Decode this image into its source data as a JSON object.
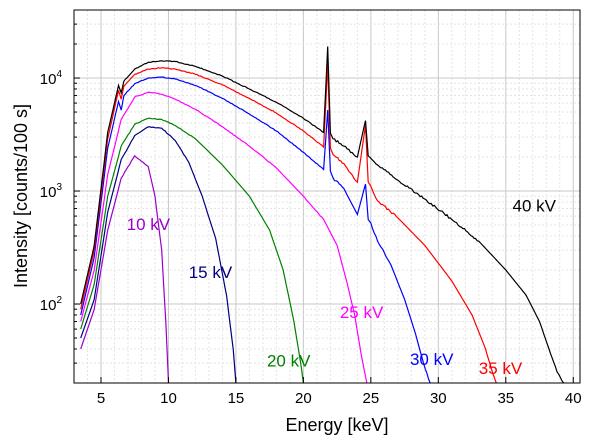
{
  "chart_data": {
    "type": "line",
    "xlabel": "Energy [keV]",
    "ylabel": "Intensity [counts/100 s]",
    "x_scale": "linear",
    "y_scale": "log",
    "xlim": [
      3,
      40.5
    ],
    "ylim": [
      20,
      40000
    ],
    "grid": true,
    "x_ticks": [
      5,
      10,
      15,
      20,
      25,
      30,
      35,
      40
    ],
    "x_tick_labels": [
      "5",
      "10",
      "15",
      "20",
      "25",
      "30",
      "35",
      "40"
    ],
    "y_ticks": [
      100,
      1000,
      10000
    ],
    "y_tick_labels": [
      {
        "base": "10",
        "exp": "2"
      },
      {
        "base": "10",
        "exp": "3"
      },
      {
        "base": "10",
        "exp": "4"
      }
    ],
    "series": [
      {
        "name": "10 kV",
        "color": "#9900cc",
        "x": [
          3.5,
          4.5,
          5.5,
          6.5,
          7.5,
          8.5,
          9.0,
          9.5,
          9.8,
          10.0
        ],
        "y": [
          40,
          90,
          450,
          1300,
          2050,
          1650,
          900,
          300,
          70,
          20
        ]
      },
      {
        "name": "15 kV",
        "color": "#000080",
        "x": [
          3.5,
          4.5,
          5.5,
          6.5,
          7.5,
          8.5,
          9.5,
          10.5,
          11.5,
          12.5,
          13.5,
          14.3,
          14.8,
          15.0
        ],
        "y": [
          50,
          110,
          650,
          1900,
          3100,
          3700,
          3600,
          2800,
          1800,
          900,
          380,
          120,
          40,
          20
        ]
      },
      {
        "name": "20 kV",
        "color": "#008000",
        "x": [
          3.5,
          4.5,
          5.5,
          6.5,
          7.5,
          8.5,
          9.5,
          10.5,
          12,
          14,
          16,
          17.5,
          18.5,
          19.3,
          19.8,
          20.0
        ],
        "y": [
          60,
          150,
          900,
          2500,
          3900,
          4400,
          4300,
          3800,
          2900,
          1700,
          900,
          450,
          200,
          70,
          30,
          20
        ]
      },
      {
        "name": "25 kV",
        "color": "#ff00ff",
        "x": [
          3.5,
          4.5,
          5.5,
          6.5,
          7.5,
          8.5,
          9.5,
          10.5,
          12,
          14,
          16,
          18,
          20,
          21.5,
          22.5,
          23.2,
          23.8,
          24.3,
          24.7
        ],
        "y": [
          70,
          200,
          1400,
          4300,
          6800,
          7500,
          7200,
          6500,
          5300,
          3700,
          2500,
          1600,
          900,
          560,
          330,
          160,
          80,
          35,
          20
        ]
      },
      {
        "name": "30 kV",
        "color": "#0000ff",
        "x": [
          3.5,
          4.5,
          5.5,
          6.3,
          6.5,
          6.7,
          7.5,
          8.5,
          9.5,
          10.5,
          12,
          14,
          16,
          18,
          20,
          21.5,
          21.8,
          22.0,
          22.2,
          23,
          24,
          24.6,
          24.8,
          25.0,
          25.5,
          26.5,
          27.5,
          28.3,
          28.9,
          29.4
        ],
        "y": [
          80,
          260,
          2400,
          6200,
          5200,
          7000,
          8900,
          10000,
          10200,
          9800,
          8600,
          6600,
          4800,
          3400,
          2200,
          1550,
          5200,
          1500,
          1300,
          1050,
          620,
          1150,
          560,
          520,
          360,
          220,
          110,
          55,
          30,
          20
        ]
      },
      {
        "name": "35 kV",
        "color": "#ff0000",
        "x": [
          3.5,
          4.5,
          5.5,
          6.3,
          6.5,
          6.7,
          7.5,
          8.5,
          9.5,
          10.5,
          12,
          14,
          16,
          18,
          20,
          21.5,
          21.8,
          22.0,
          22.2,
          23,
          24,
          24.6,
          24.8,
          25.0,
          25.5,
          27,
          29,
          31,
          32.5,
          33.5,
          34.0,
          34.3
        ],
        "y": [
          90,
          300,
          2900,
          7800,
          6500,
          8500,
          10800,
          12000,
          12300,
          12000,
          10800,
          8700,
          6600,
          4900,
          3400,
          2450,
          13500,
          2400,
          2100,
          1750,
          1200,
          3800,
          1200,
          1100,
          820,
          580,
          330,
          160,
          80,
          40,
          25,
          20
        ]
      },
      {
        "name": "40 kV",
        "color": "#000000",
        "x": [
          3.5,
          4.5,
          5.5,
          6.3,
          6.5,
          6.7,
          7.5,
          8.5,
          9.5,
          10.5,
          12,
          14,
          16,
          18,
          20,
          21.5,
          21.8,
          22.0,
          22.2,
          23,
          24,
          24.6,
          24.8,
          25.0,
          25.5,
          27,
          29,
          31,
          33,
          35,
          36.5,
          37.5,
          38.2,
          38.8,
          39.3
        ],
        "y": [
          100,
          330,
          3300,
          8600,
          7400,
          9400,
          12000,
          13800,
          14200,
          14000,
          12700,
          10400,
          8000,
          6100,
          4400,
          3300,
          19000,
          3250,
          2900,
          2500,
          2000,
          4200,
          2050,
          1950,
          1700,
          1250,
          850,
          560,
          360,
          200,
          120,
          70,
          40,
          25,
          20
        ]
      }
    ],
    "annotations": [
      {
        "text": "10 kV",
        "x": 6.9,
        "y": 450,
        "color": "#9900cc"
      },
      {
        "text": "15 kV",
        "x": 11.5,
        "y": 170,
        "color": "#000080"
      },
      {
        "text": "20 kV",
        "x": 17.3,
        "y": 28,
        "color": "#008000"
      },
      {
        "text": "25 kV",
        "x": 22.7,
        "y": 75,
        "color": "#ff00ff"
      },
      {
        "text": "30 kV",
        "x": 27.9,
        "y": 29,
        "color": "#0000ff"
      },
      {
        "text": "35 kV",
        "x": 33.0,
        "y": 24,
        "color": "#ff0000"
      },
      {
        "text": "40 kV",
        "x": 35.5,
        "y": 660,
        "color": "#000000"
      }
    ]
  }
}
